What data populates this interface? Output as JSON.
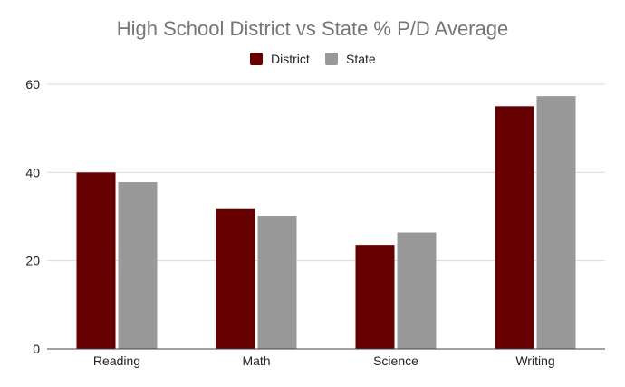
{
  "chart_data": {
    "type": "bar",
    "title": "High School District vs State % P/D Average",
    "xlabel": "",
    "ylabel": "",
    "categories": [
      "Reading",
      "Math",
      "Science",
      "Writing"
    ],
    "series": [
      {
        "name": "District",
        "color": "#660000",
        "values": [
          40.0,
          31.7,
          23.6,
          55.0
        ]
      },
      {
        "name": "State",
        "color": "#999999",
        "values": [
          37.8,
          30.2,
          26.4,
          57.3
        ]
      }
    ],
    "ylim": [
      0,
      60
    ],
    "yticks": [
      0,
      20,
      40,
      60
    ],
    "grid": true,
    "legend_position": "top-center"
  }
}
